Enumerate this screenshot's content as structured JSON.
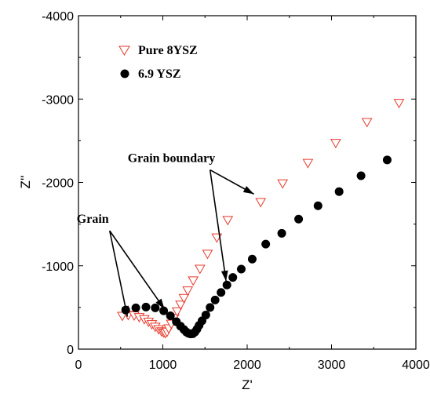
{
  "chart_data": {
    "type": "scatter",
    "xlabel": "Z'",
    "ylabel": "Z''",
    "xlim": [
      0,
      4000
    ],
    "ylim": [
      0,
      -4000
    ],
    "x_ticks": [
      "0",
      "1000",
      "2000",
      "3000",
      "4000"
    ],
    "y_ticks": [
      "0",
      "-1000",
      "-2000",
      "-3000",
      "-4000"
    ],
    "grid": false,
    "legend": "top-left",
    "series": [
      {
        "name": "Pure 8YSZ",
        "marker": "open-triangle-down",
        "color": "#e8392b",
        "points": [
          [
            520,
            -395
          ],
          [
            590,
            -405
          ],
          [
            660,
            -400
          ],
          [
            720,
            -380
          ],
          [
            780,
            -355
          ],
          [
            830,
            -325
          ],
          [
            870,
            -295
          ],
          [
            910,
            -265
          ],
          [
            950,
            -235
          ],
          [
            985,
            -210
          ],
          [
            1010,
            -195
          ],
          [
            1030,
            -190
          ],
          [
            1050,
            -205
          ],
          [
            1070,
            -245
          ],
          [
            1100,
            -300
          ],
          [
            1135,
            -370
          ],
          [
            1170,
            -450
          ],
          [
            1210,
            -530
          ],
          [
            1250,
            -610
          ],
          [
            1295,
            -700
          ],
          [
            1360,
            -820
          ],
          [
            1440,
            -960
          ],
          [
            1530,
            -1140
          ],
          [
            1640,
            -1335
          ],
          [
            1770,
            -1545
          ],
          [
            2160,
            -1760
          ],
          [
            2420,
            -1985
          ],
          [
            2720,
            -2230
          ],
          [
            3050,
            -2470
          ],
          [
            3420,
            -2720
          ],
          [
            3800,
            -2950
          ]
        ]
      },
      {
        "name": "6.9 YSZ",
        "marker": "filled-circle",
        "color": "#000000",
        "points": [
          [
            560,
            -470
          ],
          [
            680,
            -495
          ],
          [
            800,
            -505
          ],
          [
            910,
            -495
          ],
          [
            1010,
            -460
          ],
          [
            1090,
            -400
          ],
          [
            1160,
            -330
          ],
          [
            1210,
            -275
          ],
          [
            1250,
            -235
          ],
          [
            1280,
            -205
          ],
          [
            1305,
            -190
          ],
          [
            1330,
            -182
          ],
          [
            1355,
            -185
          ],
          [
            1380,
            -205
          ],
          [
            1405,
            -240
          ],
          [
            1430,
            -285
          ],
          [
            1465,
            -340
          ],
          [
            1510,
            -410
          ],
          [
            1560,
            -500
          ],
          [
            1620,
            -590
          ],
          [
            1690,
            -680
          ],
          [
            1760,
            -770
          ],
          [
            1830,
            -860
          ],
          [
            1930,
            -960
          ],
          [
            2060,
            -1080
          ],
          [
            2220,
            -1260
          ],
          [
            2410,
            -1390
          ],
          [
            2610,
            -1560
          ],
          [
            2840,
            -1720
          ],
          [
            3090,
            -1890
          ],
          [
            3350,
            -2080
          ],
          [
            3660,
            -2270
          ]
        ]
      }
    ],
    "annotations": [
      {
        "text": "Grain",
        "anchor": [
          370,
          -1420
        ],
        "arrows_to": [
          [
            580,
            -390
          ],
          [
            1020,
            -480
          ]
        ]
      },
      {
        "text": "Grain boundary",
        "anchor": [
          1560,
          -2150
        ],
        "arrows_to": [
          [
            2080,
            -1860
          ],
          [
            1750,
            -815
          ]
        ]
      }
    ]
  }
}
